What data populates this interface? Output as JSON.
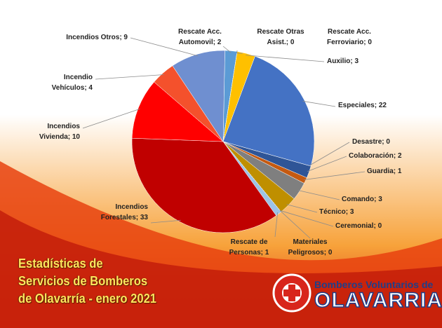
{
  "chart_data": {
    "type": "pie",
    "values": [
      2,
      0,
      0,
      3,
      22,
      0,
      2,
      1,
      3,
      3,
      0,
      0,
      1,
      33,
      10,
      4,
      9
    ],
    "value_labels": [
      "Rescate Acc.\nAutomovil; 2",
      "Rescate Otras\nAsist.; 0",
      "Rescate Acc.\nFerroviario; 0",
      "Auxilio; 3",
      "Especiales; 22",
      "Desastre; 0",
      "Colaboración; 2",
      "Guardia; 1",
      "Comando; 3",
      "Técnico; 3",
      "Ceremonial; 0",
      "Materiales\nPeligrosos; 0",
      "Rescate de\nPersonas; 1",
      "Incendios\nForestales; 33",
      "Incendios\nVivienda; 10",
      "Incendio\nVehículos; 4",
      "Incendios Otros; 9"
    ],
    "colors": [
      "#5b9bd5",
      "#a5a5a5",
      "#264478",
      "#ffc000",
      "#4472c4",
      "#70ad47",
      "#2f5597",
      "#c55a11",
      "#7f7f7f",
      "#bf8f00",
      "#43682b",
      "#9e480e",
      "#9dc3e6",
      "#c00000",
      "#ff0000",
      "#f4512c",
      "#6f8fd0"
    ]
  },
  "title": "Estadísticas de\nServicios de Bomberos\nde Olavarría - enero 2021",
  "branding": {
    "line1": "Bomberos Voluntarios de",
    "line2": "OLAVARRIA"
  }
}
